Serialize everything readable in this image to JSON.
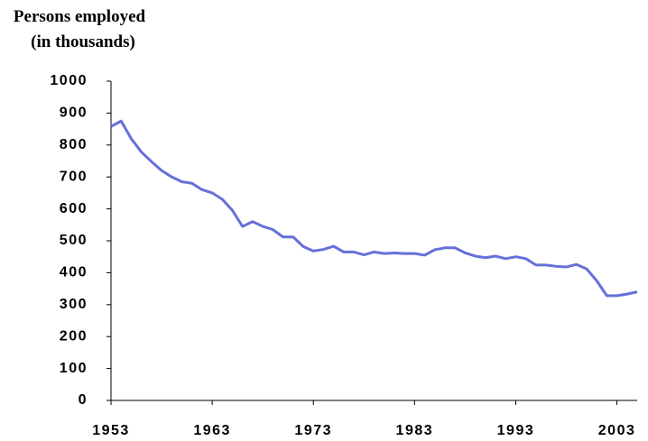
{
  "chart_data": {
    "type": "line",
    "title_lines": [
      "Persons employed",
      "(in thousands)"
    ],
    "x": [
      1953,
      1954,
      1955,
      1956,
      1957,
      1958,
      1959,
      1960,
      1961,
      1962,
      1963,
      1964,
      1965,
      1966,
      1967,
      1968,
      1969,
      1970,
      1971,
      1972,
      1973,
      1974,
      1975,
      1976,
      1977,
      1978,
      1979,
      1980,
      1981,
      1982,
      1983,
      1984,
      1985,
      1986,
      1987,
      1988,
      1989,
      1990,
      1991,
      1992,
      1993,
      1994,
      1995,
      1996,
      1997,
      1998,
      1999,
      2000,
      2001,
      2002,
      2003,
      2004,
      2005
    ],
    "series": [
      {
        "name": "Persons employed",
        "color": "#6670d8",
        "values": [
          858,
          875,
          820,
          778,
          748,
          720,
          700,
          685,
          680,
          660,
          650,
          630,
          595,
          545,
          560,
          545,
          535,
          512,
          512,
          482,
          468,
          473,
          483,
          465,
          465,
          456,
          465,
          460,
          462,
          460,
          460,
          455,
          472,
          478,
          478,
          462,
          452,
          447,
          452,
          444,
          450,
          444,
          424,
          424,
          420,
          418,
          426,
          412,
          375,
          328,
          328,
          333,
          340
        ]
      }
    ],
    "xlim": [
      1953,
      2005
    ],
    "xticks": [
      1953,
      1963,
      1973,
      1983,
      1993,
      2003
    ],
    "ylim": [
      0,
      1000
    ],
    "yticks": [
      0,
      100,
      200,
      300,
      400,
      500,
      600,
      700,
      800,
      900,
      1000
    ],
    "grid": false
  }
}
